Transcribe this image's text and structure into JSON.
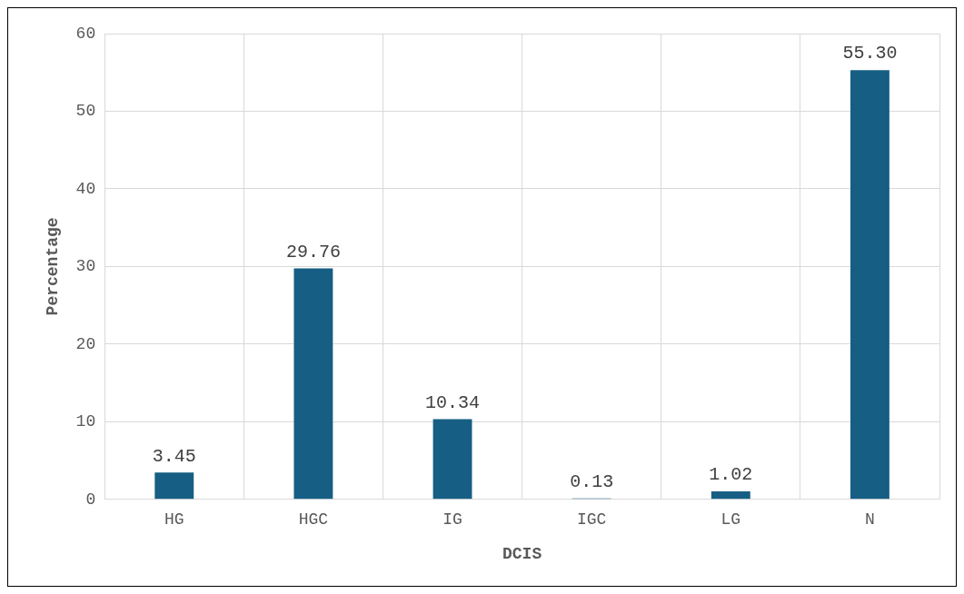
{
  "chart_data": {
    "type": "bar",
    "xlabel": "DCIS",
    "ylabel": "Percentage",
    "categories": [
      "HG",
      "HGC",
      "IG",
      "IGC",
      "LG",
      "N"
    ],
    "values": [
      3.45,
      29.76,
      10.34,
      0.13,
      1.02,
      55.3
    ],
    "value_labels": [
      "3.45",
      "29.76",
      "10.34",
      "0.13",
      "1.02",
      "55.30"
    ],
    "color": "#165e83",
    "ylim": [
      0,
      60
    ],
    "yticks": [
      0,
      10,
      20,
      30,
      40,
      50,
      60
    ],
    "grid": true,
    "legend": false
  }
}
